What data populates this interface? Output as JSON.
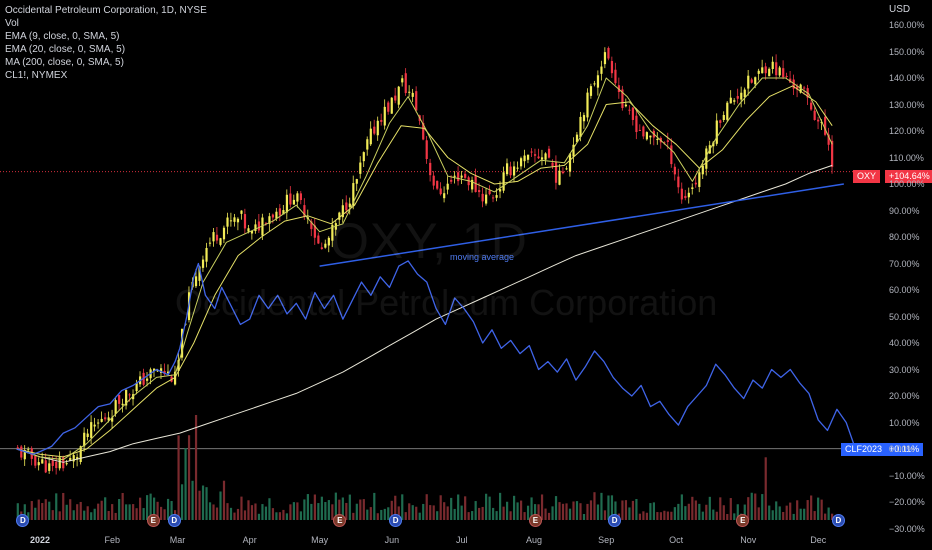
{
  "legend": {
    "title": "Occidental Petroleum Corporation, 1D, NYSE",
    "vol": "Vol",
    "ema9": "EMA (9, close, 0, SMA, 5)",
    "ema20": "EMA (20, close, 0, SMA, 5)",
    "ma200": "MA (200, close, 0, SMA, 5)",
    "cl1": "CL1!, NYMEX"
  },
  "watermark": {
    "ticker": "OXY, 1D",
    "name": "Occidental Petroleum Corporation"
  },
  "currency": "USD",
  "badges": {
    "oxy_label": "OXY",
    "oxy_value": "+104.64%",
    "clf_label": "CLF2023",
    "clf_value": "+0.11%"
  },
  "annotation": "moving average",
  "colors": {
    "up": "#f2ec58",
    "down": "#f23645",
    "oil": "#3f64e8",
    "ema9": "#c9cf5f",
    "ema20": "#e5e067",
    "ma200": "#e8e6d8",
    "trendline": "#2f5fe6",
    "oxy_badge": "#f23645",
    "clf_badge": "#2962ff"
  },
  "events": [
    {
      "x": "Jan 3",
      "type": "D"
    },
    {
      "x": "Feb 26",
      "type": "E"
    },
    {
      "x": "Mar 7",
      "type": "D"
    },
    {
      "x": "May 10",
      "type": "E"
    },
    {
      "x": "Jun 8",
      "type": "D"
    },
    {
      "x": "Aug 2",
      "type": "E"
    },
    {
      "x": "Sep 7",
      "type": "D"
    },
    {
      "x": "Nov 8",
      "type": "E"
    },
    {
      "x": "Dec 8",
      "type": "D"
    }
  ],
  "chart_data": {
    "type": "line",
    "scale": "percent",
    "y_ticks": [
      "160.00%",
      "150.00%",
      "140.00%",
      "130.00%",
      "120.00%",
      "110.00%",
      "100.00%",
      "90.00%",
      "80.00%",
      "70.00%",
      "60.00%",
      "50.00%",
      "40.00%",
      "30.00%",
      "20.00%",
      "10.00%",
      "0.00%",
      "−10.00%",
      "−20.00%",
      "−30.00%"
    ],
    "y_tick_values": [
      160,
      150,
      140,
      130,
      120,
      110,
      100,
      90,
      80,
      70,
      60,
      50,
      40,
      30,
      20,
      10,
      0,
      -10,
      -20,
      -30
    ],
    "ylim": [
      -33,
      166
    ],
    "x_ticks": [
      "2022",
      "Feb",
      "Mar",
      "Apr",
      "May",
      "Jun",
      "Jul",
      "Aug",
      "Sep",
      "Oct",
      "Nov",
      "Dec"
    ],
    "x_tick_days": [
      0,
      31,
      59,
      90,
      120,
      151,
      181,
      212,
      243,
      273,
      304,
      334
    ],
    "xlim_days": [
      -10,
      345
    ],
    "x_unit": "days into 2022",
    "series": [
      {
        "name": "OXY",
        "kind": "price",
        "points": [
          [
            -10,
            -1
          ],
          [
            -5,
            -3
          ],
          [
            0,
            -5
          ],
          [
            5,
            -8
          ],
          [
            8,
            -4
          ],
          [
            10,
            -6
          ],
          [
            15,
            -3
          ],
          [
            20,
            6
          ],
          [
            25,
            10
          ],
          [
            30,
            14
          ],
          [
            35,
            20
          ],
          [
            40,
            23
          ],
          [
            45,
            27
          ],
          [
            50,
            30
          ],
          [
            55,
            28
          ],
          [
            58,
            26
          ],
          [
            60,
            40
          ],
          [
            63,
            55
          ],
          [
            66,
            65
          ],
          [
            70,
            75
          ],
          [
            74,
            80
          ],
          [
            80,
            85
          ],
          [
            86,
            87
          ],
          [
            90,
            80
          ],
          [
            96,
            88
          ],
          [
            102,
            90
          ],
          [
            108,
            96
          ],
          [
            115,
            88
          ],
          [
            120,
            74
          ],
          [
            124,
            80
          ],
          [
            130,
            91
          ],
          [
            135,
            100
          ],
          [
            140,
            115
          ],
          [
            145,
            125
          ],
          [
            150,
            130
          ],
          [
            155,
            138
          ],
          [
            160,
            132
          ],
          [
            163,
            122
          ],
          [
            166,
            108
          ],
          [
            170,
            96
          ],
          [
            175,
            100
          ],
          [
            180,
            104
          ],
          [
            185,
            100
          ],
          [
            190,
            95
          ],
          [
            195,
            96
          ],
          [
            200,
            105
          ],
          [
            205,
            108
          ],
          [
            212,
            110
          ],
          [
            217,
            112
          ],
          [
            222,
            101
          ],
          [
            227,
            112
          ],
          [
            232,
            127
          ],
          [
            236,
            135
          ],
          [
            240,
            146
          ],
          [
            243,
            149
          ],
          [
            246,
            142
          ],
          [
            250,
            128
          ],
          [
            255,
            123
          ],
          [
            260,
            117
          ],
          [
            265,
            118
          ],
          [
            270,
            112
          ],
          [
            275,
            94
          ],
          [
            281,
            101
          ],
          [
            286,
            112
          ],
          [
            292,
            127
          ],
          [
            297,
            132
          ],
          [
            302,
            137
          ],
          [
            307,
            140
          ],
          [
            312,
            146
          ],
          [
            317,
            142
          ],
          [
            322,
            138
          ],
          [
            326,
            136
          ],
          [
            330,
            130
          ],
          [
            334,
            123
          ],
          [
            338,
            116
          ],
          [
            340,
            107
          ]
        ]
      },
      {
        "name": "EMA 9",
        "kind": "ema9",
        "points": [
          [
            -10,
            0
          ],
          [
            0,
            -3
          ],
          [
            10,
            -4
          ],
          [
            20,
            2
          ],
          [
            30,
            11
          ],
          [
            40,
            20
          ],
          [
            50,
            27
          ],
          [
            58,
            28
          ],
          [
            63,
            43
          ],
          [
            70,
            63
          ],
          [
            80,
            78
          ],
          [
            90,
            82
          ],
          [
            100,
            86
          ],
          [
            110,
            92
          ],
          [
            120,
            82
          ],
          [
            130,
            85
          ],
          [
            140,
            103
          ],
          [
            150,
            123
          ],
          [
            158,
            133
          ],
          [
            166,
            120
          ],
          [
            175,
            103
          ],
          [
            185,
            101
          ],
          [
            195,
            97
          ],
          [
            205,
            103
          ],
          [
            215,
            109
          ],
          [
            225,
            108
          ],
          [
            235,
            122
          ],
          [
            243,
            140
          ],
          [
            252,
            133
          ],
          [
            262,
            120
          ],
          [
            272,
            112
          ],
          [
            280,
            101
          ],
          [
            290,
            117
          ],
          [
            300,
            130
          ],
          [
            310,
            140
          ],
          [
            320,
            140
          ],
          [
            330,
            134
          ],
          [
            340,
            115
          ]
        ]
      },
      {
        "name": "EMA 20",
        "kind": "ema20",
        "points": [
          [
            -10,
            0
          ],
          [
            0,
            -2
          ],
          [
            10,
            -3
          ],
          [
            20,
            0
          ],
          [
            30,
            7
          ],
          [
            40,
            15
          ],
          [
            50,
            23
          ],
          [
            58,
            27
          ],
          [
            66,
            40
          ],
          [
            75,
            58
          ],
          [
            85,
            73
          ],
          [
            95,
            80
          ],
          [
            105,
            86
          ],
          [
            115,
            88
          ],
          [
            125,
            85
          ],
          [
            135,
            92
          ],
          [
            145,
            108
          ],
          [
            155,
            122
          ],
          [
            165,
            121
          ],
          [
            175,
            110
          ],
          [
            185,
            104
          ],
          [
            195,
            100
          ],
          [
            205,
            101
          ],
          [
            215,
            106
          ],
          [
            225,
            107
          ],
          [
            235,
            115
          ],
          [
            243,
            130
          ],
          [
            253,
            131
          ],
          [
            263,
            122
          ],
          [
            273,
            115
          ],
          [
            283,
            106
          ],
          [
            293,
            113
          ],
          [
            303,
            124
          ],
          [
            313,
            133
          ],
          [
            323,
            137
          ],
          [
            333,
            131
          ],
          [
            340,
            122
          ]
        ]
      },
      {
        "name": "MA 200",
        "kind": "ma200",
        "points": [
          [
            -10,
            0
          ],
          [
            0,
            -3
          ],
          [
            10,
            -5
          ],
          [
            20,
            -3
          ],
          [
            30,
            -1
          ],
          [
            40,
            2
          ],
          [
            50,
            4
          ],
          [
            60,
            6
          ],
          [
            70,
            9
          ],
          [
            80,
            12
          ],
          [
            90,
            15
          ],
          [
            100,
            18
          ],
          [
            110,
            21
          ],
          [
            120,
            25
          ],
          [
            130,
            29
          ],
          [
            140,
            34
          ],
          [
            150,
            39
          ],
          [
            160,
            44
          ],
          [
            170,
            49
          ],
          [
            180,
            53
          ],
          [
            190,
            57
          ],
          [
            200,
            61
          ],
          [
            210,
            65
          ],
          [
            220,
            69
          ],
          [
            230,
            73
          ],
          [
            240,
            76
          ],
          [
            250,
            79
          ],
          [
            260,
            82
          ],
          [
            270,
            85
          ],
          [
            280,
            88
          ],
          [
            290,
            91
          ],
          [
            300,
            94
          ],
          [
            310,
            97
          ],
          [
            320,
            100
          ],
          [
            330,
            104
          ],
          [
            340,
            107
          ]
        ]
      },
      {
        "name": "CL1!",
        "kind": "oil",
        "points": [
          [
            -10,
            0
          ],
          [
            -3,
            -2
          ],
          [
            0,
            -1
          ],
          [
            5,
            1
          ],
          [
            10,
            6
          ],
          [
            15,
            8
          ],
          [
            20,
            12
          ],
          [
            25,
            16
          ],
          [
            30,
            17
          ],
          [
            35,
            22
          ],
          [
            40,
            24
          ],
          [
            45,
            27
          ],
          [
            50,
            30
          ],
          [
            55,
            28
          ],
          [
            58,
            33
          ],
          [
            60,
            38
          ],
          [
            63,
            50
          ],
          [
            66,
            65
          ],
          [
            68,
            70
          ],
          [
            71,
            58
          ],
          [
            75,
            53
          ],
          [
            78,
            61
          ],
          [
            82,
            54
          ],
          [
            86,
            47
          ],
          [
            90,
            49
          ],
          [
            94,
            58
          ],
          [
            98,
            53
          ],
          [
            102,
            58
          ],
          [
            106,
            51
          ],
          [
            110,
            55
          ],
          [
            114,
            49
          ],
          [
            118,
            59
          ],
          [
            122,
            53
          ],
          [
            126,
            58
          ],
          [
            130,
            49
          ],
          [
            134,
            56
          ],
          [
            138,
            63
          ],
          [
            142,
            58
          ],
          [
            146,
            65
          ],
          [
            150,
            61
          ],
          [
            154,
            69
          ],
          [
            158,
            71
          ],
          [
            162,
            66
          ],
          [
            166,
            63
          ],
          [
            170,
            53
          ],
          [
            174,
            47
          ],
          [
            178,
            57
          ],
          [
            182,
            53
          ],
          [
            186,
            48
          ],
          [
            190,
            40
          ],
          [
            194,
            45
          ],
          [
            198,
            38
          ],
          [
            202,
            41
          ],
          [
            206,
            36
          ],
          [
            210,
            39
          ],
          [
            214,
            30
          ],
          [
            218,
            33
          ],
          [
            222,
            29
          ],
          [
            226,
            34
          ],
          [
            230,
            26
          ],
          [
            234,
            31
          ],
          [
            238,
            37
          ],
          [
            242,
            33
          ],
          [
            246,
            27
          ],
          [
            250,
            23
          ],
          [
            254,
            20
          ],
          [
            258,
            24
          ],
          [
            262,
            16
          ],
          [
            266,
            18
          ],
          [
            270,
            13
          ],
          [
            274,
            9
          ],
          [
            278,
            16
          ],
          [
            282,
            20
          ],
          [
            286,
            24
          ],
          [
            290,
            32
          ],
          [
            294,
            28
          ],
          [
            298,
            23
          ],
          [
            302,
            19
          ],
          [
            306,
            26
          ],
          [
            310,
            23
          ],
          [
            314,
            30
          ],
          [
            318,
            27
          ],
          [
            322,
            30
          ],
          [
            326,
            25
          ],
          [
            330,
            21
          ],
          [
            334,
            11
          ],
          [
            338,
            7
          ],
          [
            342,
            15
          ],
          [
            346,
            10
          ],
          [
            350,
            0
          ]
        ]
      }
    ],
    "trendlines": [
      {
        "from": [
          120,
          69
        ],
        "to": [
          345,
          100
        ]
      }
    ],
    "reference_lines": [
      {
        "name": "OXY last",
        "value": 104.64
      },
      {
        "name": "CLF2023 last",
        "value": 0.11
      }
    ],
    "volume_note": "Volume bars at bottom (relative heights only)"
  }
}
